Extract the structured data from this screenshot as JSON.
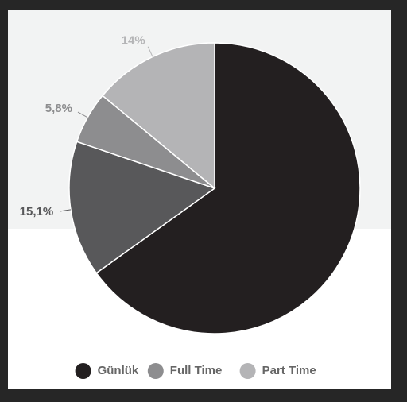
{
  "chart_data": {
    "type": "pie",
    "categories": [
      "Günlük",
      null,
      "Full Time",
      "Part Time"
    ],
    "values": [
      65.1,
      15.1,
      5.8,
      14
    ],
    "value_labels": [
      null,
      "15,1%",
      "5,8%",
      "14%"
    ],
    "colors": [
      "#231f20",
      "#58585a",
      "#8d8d8f",
      "#b4b4b6"
    ],
    "legend": "bottom"
  }
}
